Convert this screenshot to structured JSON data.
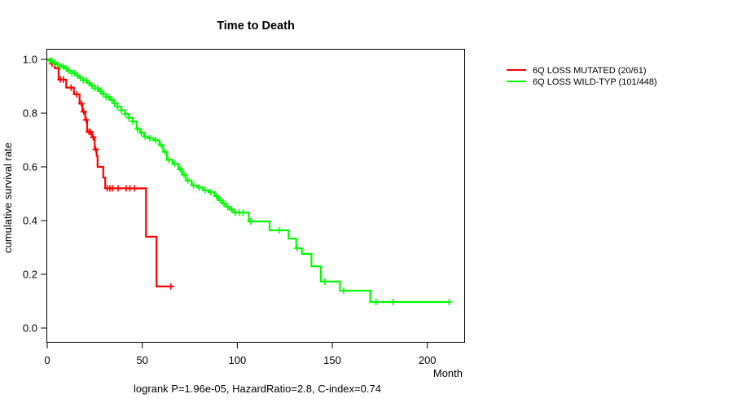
{
  "title": "Time to Death",
  "chart_data": {
    "type": "line",
    "subtype": "kaplan-meier-step",
    "title": "Time to Death",
    "xlabel": "Month",
    "ylabel": "cumulative survival rate",
    "annotation": "logrank P=1.96e-05, HazardRatio=2.8, C-index=0.74",
    "xlim": [
      0,
      219
    ],
    "ylim": [
      0,
      1
    ],
    "xticks": [
      0,
      50,
      100,
      150,
      200
    ],
    "yticks": [
      0.0,
      0.2,
      0.4,
      0.6,
      0.8,
      1.0
    ],
    "grid": false,
    "legend_position": "right-outside",
    "series": [
      {
        "key": "6q-loss-mutated",
        "name": "6Q LOSS MUTATED (20/61)",
        "color": "#ff0000",
        "end_time": 66.5,
        "steps": [
          [
            0,
            1.0
          ],
          [
            2,
            0.984
          ],
          [
            4,
            0.967
          ],
          [
            6,
            0.925
          ],
          [
            10,
            0.895
          ],
          [
            14,
            0.87
          ],
          [
            17,
            0.835
          ],
          [
            18.5,
            0.805
          ],
          [
            20,
            0.775
          ],
          [
            21,
            0.73
          ],
          [
            23.5,
            0.71
          ],
          [
            25,
            0.665
          ],
          [
            26,
            0.64
          ],
          [
            26.5,
            0.6
          ],
          [
            29.5,
            0.56
          ],
          [
            30.5,
            0.52
          ],
          [
            52,
            0.34
          ],
          [
            57.5,
            0.155
          ]
        ],
        "censor_times": [
          2.5,
          7,
          8.5,
          12.5,
          15.5,
          18,
          19.2,
          20.5,
          22,
          22.8,
          24.2,
          25.5,
          31.6,
          33,
          34.4,
          37.3,
          41.5,
          43.5,
          46,
          65
        ]
      },
      {
        "key": "6q-loss-wild-typ",
        "name": "6Q LOSS WILD-TYP (101/448)",
        "color": "#00ff00",
        "end_time": 212,
        "steps": [
          [
            0,
            1.0
          ],
          [
            1,
            0.995
          ],
          [
            3,
            0.988
          ],
          [
            5,
            0.981
          ],
          [
            7,
            0.974
          ],
          [
            9,
            0.966
          ],
          [
            11,
            0.958
          ],
          [
            13,
            0.949
          ],
          [
            15,
            0.94
          ],
          [
            17,
            0.931
          ],
          [
            19,
            0.922
          ],
          [
            21,
            0.912
          ],
          [
            23,
            0.902
          ],
          [
            25,
            0.893
          ],
          [
            27,
            0.882
          ],
          [
            29,
            0.871
          ],
          [
            31,
            0.86
          ],
          [
            33,
            0.849
          ],
          [
            35,
            0.837
          ],
          [
            37,
            0.824
          ],
          [
            39,
            0.811
          ],
          [
            41,
            0.797
          ],
          [
            43,
            0.783
          ],
          [
            45,
            0.769
          ],
          [
            47,
            0.741
          ],
          [
            49,
            0.727
          ],
          [
            51,
            0.713
          ],
          [
            53,
            0.706
          ],
          [
            56,
            0.699
          ],
          [
            59,
            0.681
          ],
          [
            61,
            0.656
          ],
          [
            63,
            0.626
          ],
          [
            66,
            0.611
          ],
          [
            69,
            0.591
          ],
          [
            71,
            0.571
          ],
          [
            73,
            0.549
          ],
          [
            76,
            0.531
          ],
          [
            79,
            0.523
          ],
          [
            82,
            0.513
          ],
          [
            85,
            0.506
          ],
          [
            88,
            0.491
          ],
          [
            90,
            0.476
          ],
          [
            92,
            0.463
          ],
          [
            94,
            0.451
          ],
          [
            96,
            0.441
          ],
          [
            98,
            0.43
          ],
          [
            106,
            0.397
          ],
          [
            117,
            0.364
          ],
          [
            127,
            0.333
          ],
          [
            131,
            0.297
          ],
          [
            134,
            0.276
          ],
          [
            139,
            0.23
          ],
          [
            144,
            0.173
          ],
          [
            154,
            0.139
          ],
          [
            170,
            0.097
          ]
        ],
        "censor_times": [
          1.5,
          2.5,
          4,
          5.5,
          7,
          8.5,
          10,
          11.5,
          13,
          14.5,
          16,
          17.5,
          19,
          20.5,
          22,
          23.5,
          25,
          26.5,
          28,
          29.5,
          31,
          32.5,
          34,
          35.5,
          37,
          39,
          41,
          43,
          45,
          47.5,
          49.5,
          51.5,
          54,
          57,
          60,
          62,
          64,
          67,
          70,
          72,
          74,
          77,
          80,
          83,
          86,
          89,
          91,
          93,
          95,
          97,
          99,
          101,
          103,
          107,
          122,
          131.5,
          146,
          156,
          173,
          182,
          211.5
        ]
      }
    ]
  }
}
